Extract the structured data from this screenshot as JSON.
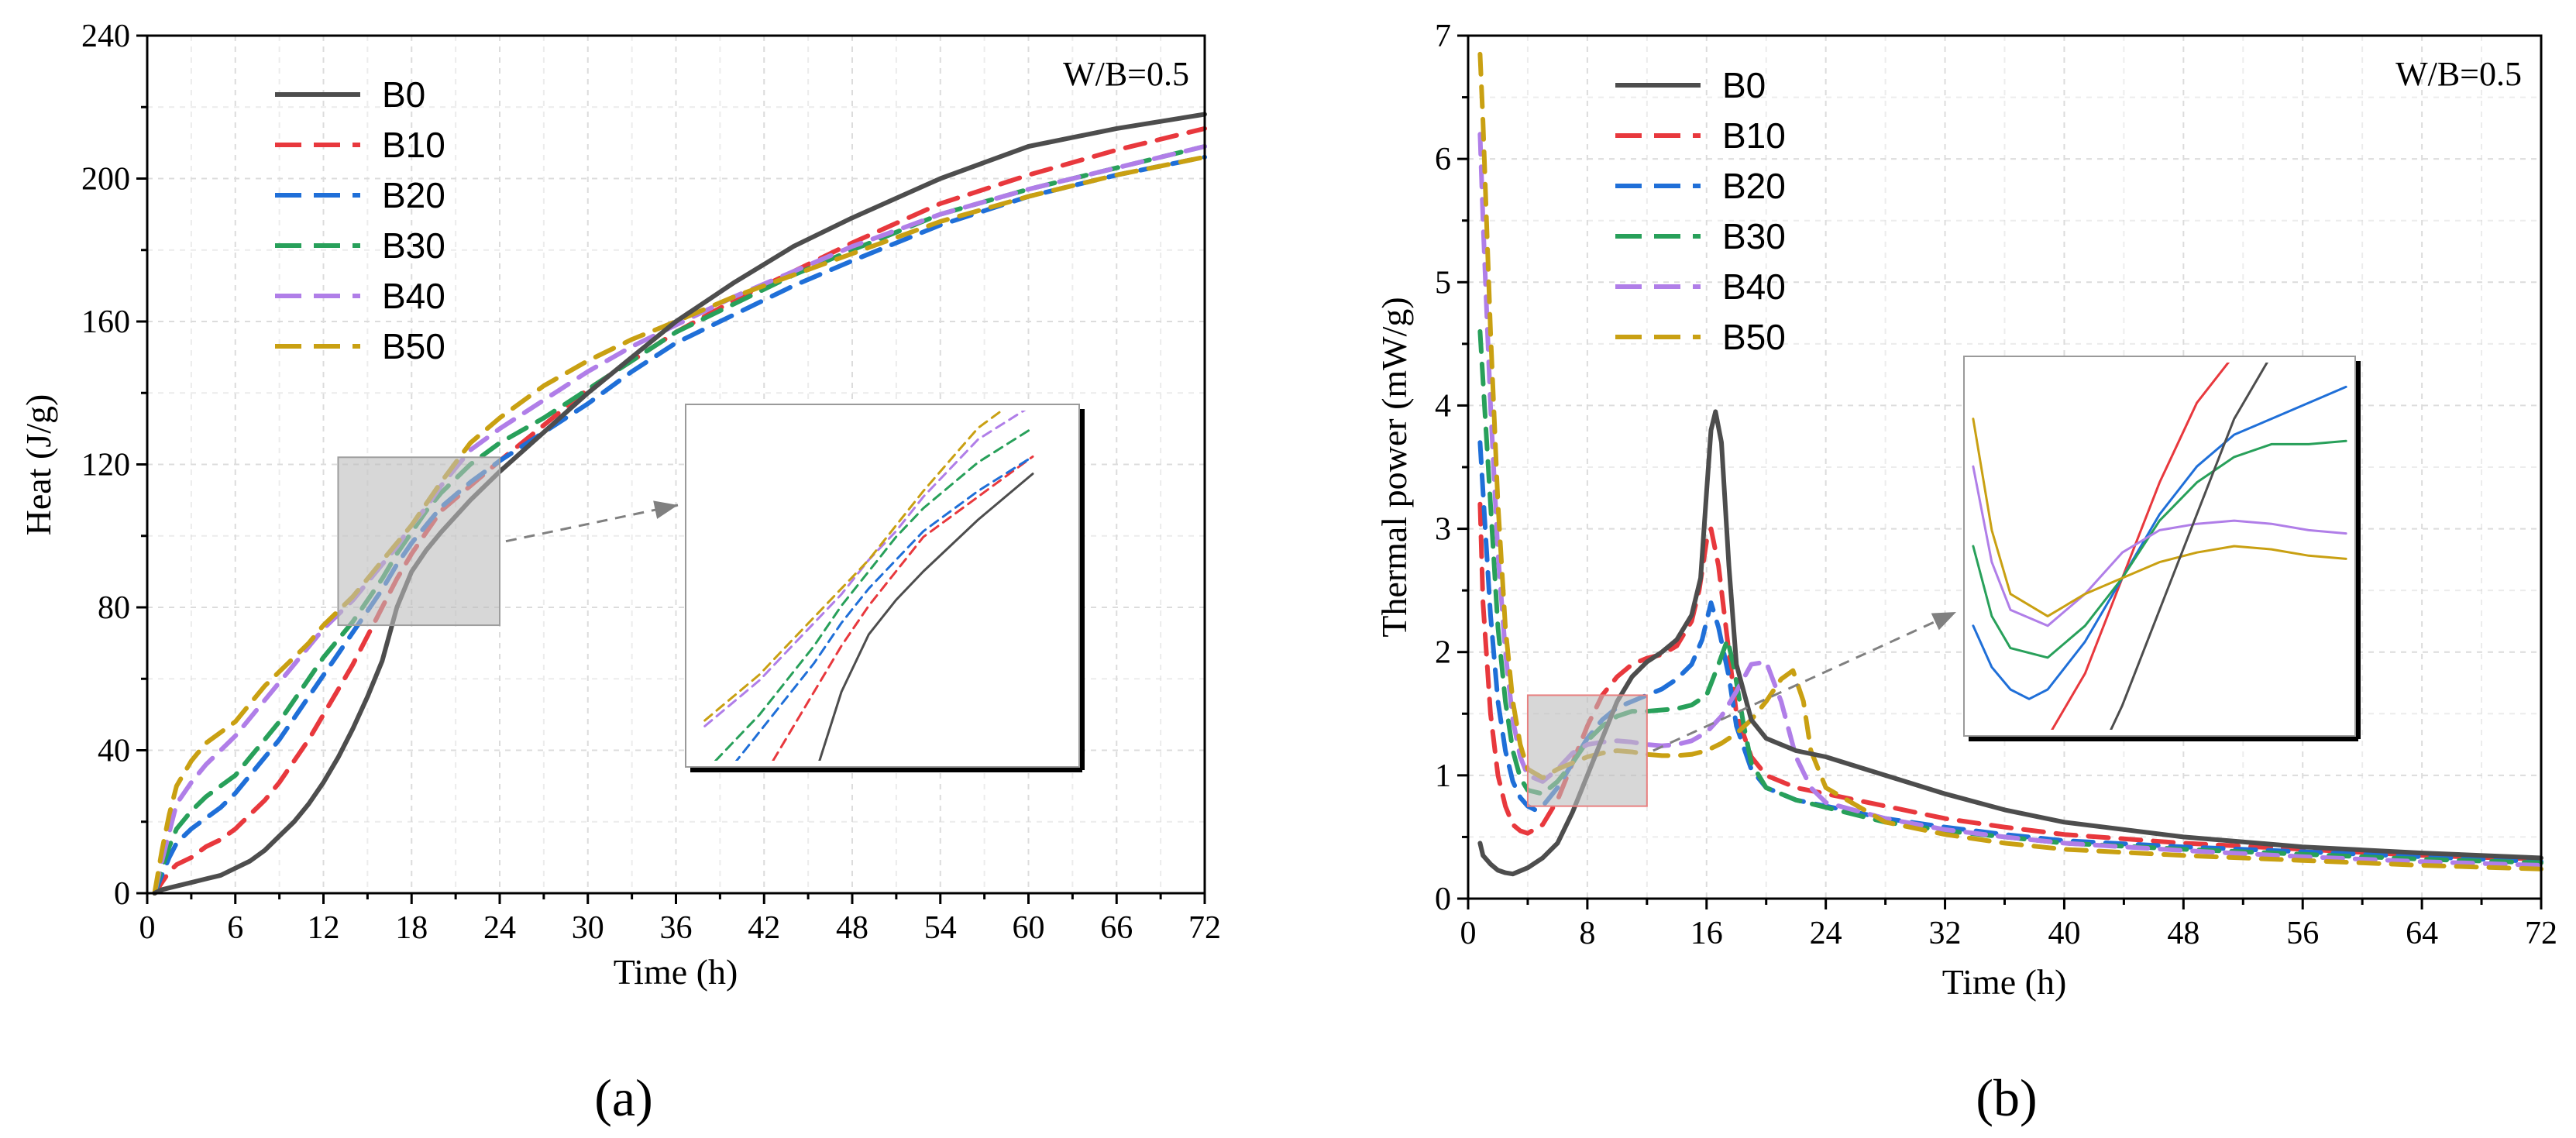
{
  "colors": {
    "B0": "#4d4d4d",
    "B10": "#e8383d",
    "B20": "#1f6fd8",
    "B30": "#28a05a",
    "B40": "#b07ee8",
    "B50": "#c9a012",
    "zoom_a": "#9e9e9e",
    "zoom_b": "#e88080",
    "arrow": "#808080"
  },
  "chart_data": [
    {
      "type": "line",
      "panel_label": "(a)",
      "title": "",
      "annotation": "W/B=0.5",
      "xlabel": "Time (h)",
      "ylabel": "Heat (J/g)",
      "xlim": [
        0,
        72
      ],
      "ylim": [
        0,
        240
      ],
      "xticks": [
        "0",
        "6",
        "12",
        "18",
        "24",
        "30",
        "36",
        "42",
        "48",
        "54",
        "60",
        "66",
        "72"
      ],
      "yticks": [
        "0",
        "40",
        "80",
        "120",
        "160",
        "200",
        "240"
      ],
      "legend": [
        "B0",
        "B10",
        "B20",
        "B30",
        "B40",
        "B50"
      ],
      "legend_position": "top-left",
      "series": [
        {
          "name": "B0",
          "x": [
            0.5,
            1,
            2,
            3,
            4,
            5,
            6,
            7,
            8,
            9,
            10,
            11,
            12,
            13,
            14,
            15,
            16,
            17,
            18,
            19,
            20,
            22,
            24,
            27,
            30,
            33,
            36,
            40,
            44,
            48,
            54,
            60,
            66,
            72
          ],
          "y": [
            0,
            1,
            2,
            3,
            4,
            5,
            7,
            9,
            12,
            16,
            20,
            25,
            31,
            38,
            46,
            55,
            65,
            80,
            90,
            96,
            101,
            110,
            118,
            129,
            140,
            150,
            160,
            171,
            181,
            189,
            200,
            209,
            214,
            218
          ]
        },
        {
          "name": "B10",
          "x": [
            0.5,
            1,
            1.5,
            2,
            3,
            4,
            5,
            6,
            7,
            8,
            9,
            10,
            11,
            12,
            13,
            14,
            15,
            16,
            17,
            18,
            19,
            20,
            22,
            24,
            27,
            30,
            33,
            36,
            40,
            44,
            48,
            54,
            60,
            66,
            72
          ],
          "y": [
            0,
            3,
            6,
            8,
            10,
            13,
            15,
            18,
            22,
            26,
            31,
            37,
            43,
            50,
            57,
            64,
            72,
            80,
            88,
            95,
            101,
            107,
            114,
            121,
            131,
            141,
            149,
            157,
            166,
            174,
            182,
            193,
            201,
            208,
            214
          ]
        },
        {
          "name": "B20",
          "x": [
            0.5,
            1,
            1.5,
            2,
            3,
            4,
            5,
            6,
            7,
            8,
            9,
            10,
            11,
            12,
            13,
            14,
            15,
            16,
            17,
            18,
            19,
            20,
            22,
            24,
            27,
            30,
            33,
            36,
            40,
            44,
            48,
            54,
            60,
            66,
            72
          ],
          "y": [
            0,
            5,
            10,
            14,
            18,
            21,
            24,
            28,
            33,
            38,
            43,
            49,
            55,
            61,
            67,
            73,
            79,
            85,
            92,
            98,
            103,
            108,
            115,
            121,
            129,
            137,
            146,
            154,
            162,
            170,
            177,
            187,
            195,
            201,
            206
          ]
        },
        {
          "name": "B30",
          "x": [
            0.5,
            1,
            1.5,
            2,
            3,
            4,
            5,
            6,
            7,
            8,
            9,
            10,
            11,
            12,
            13,
            14,
            15,
            16,
            17,
            18,
            19,
            20,
            22,
            24,
            27,
            30,
            33,
            36,
            40,
            44,
            48,
            54,
            60,
            66,
            72
          ],
          "y": [
            0,
            7,
            13,
            18,
            23,
            27,
            30,
            33,
            38,
            43,
            48,
            54,
            60,
            66,
            71,
            76,
            82,
            88,
            95,
            101,
            107,
            112,
            120,
            126,
            133,
            141,
            149,
            157,
            165,
            173,
            180,
            190,
            197,
            203,
            209
          ]
        },
        {
          "name": "B40",
          "x": [
            0.5,
            1,
            1.5,
            2,
            3,
            4,
            5,
            6,
            7,
            8,
            9,
            10,
            11,
            12,
            13,
            14,
            15,
            16,
            17,
            18,
            19,
            20,
            22,
            24,
            27,
            30,
            33,
            36,
            40,
            44,
            48,
            54,
            60,
            66,
            72
          ],
          "y": [
            0,
            9,
            17,
            25,
            31,
            36,
            40,
            44,
            49,
            54,
            59,
            64,
            69,
            74,
            78,
            82,
            87,
            92,
            97,
            103,
            108,
            114,
            124,
            130,
            138,
            146,
            153,
            159,
            167,
            174,
            181,
            190,
            197,
            203,
            209
          ]
        },
        {
          "name": "B50",
          "x": [
            0.5,
            1,
            1.5,
            2,
            3,
            4,
            5,
            6,
            7,
            8,
            9,
            10,
            11,
            12,
            13,
            14,
            15,
            16,
            17,
            18,
            19,
            20,
            22,
            24,
            27,
            30,
            33,
            36,
            40,
            44,
            48,
            54,
            60,
            66,
            72
          ],
          "y": [
            0,
            12,
            22,
            30,
            37,
            42,
            45,
            48,
            53,
            58,
            62,
            66,
            70,
            75,
            79,
            83,
            88,
            93,
            98,
            103,
            109,
            115,
            126,
            133,
            142,
            149,
            155,
            160,
            167,
            173,
            179,
            188,
            195,
            201,
            206
          ]
        }
      ],
      "zoom_region": {
        "x": [
          13,
          24
        ],
        "y": [
          75,
          122
        ]
      }
    },
    {
      "type": "line",
      "panel_label": "(b)",
      "title": "",
      "annotation": "W/B=0.5",
      "xlabel": "Time (h)",
      "ylabel": "Thermal power (mW/g)",
      "xlim": [
        0,
        72
      ],
      "ylim": [
        0,
        7
      ],
      "xticks": [
        "0",
        "8",
        "16",
        "24",
        "32",
        "40",
        "48",
        "56",
        "64",
        "72"
      ],
      "yticks": [
        "0",
        "1",
        "2",
        "3",
        "4",
        "5",
        "6",
        "7"
      ],
      "legend": [
        "B0",
        "B10",
        "B20",
        "B30",
        "B40",
        "B50"
      ],
      "legend_position": "top-left",
      "series": [
        {
          "name": "B0",
          "x": [
            0.8,
            1,
            1.5,
            2,
            2.5,
            3,
            4,
            5,
            6,
            7,
            8,
            9,
            10,
            11,
            12,
            13,
            14,
            15,
            15.6,
            16,
            16.3,
            16.6,
            17,
            17.5,
            18,
            19,
            20,
            22,
            24,
            28,
            32,
            36,
            40,
            48,
            56,
            64,
            72
          ],
          "y": [
            0.45,
            0.35,
            0.28,
            0.23,
            0.21,
            0.2,
            0.25,
            0.33,
            0.45,
            0.7,
            1.0,
            1.3,
            1.6,
            1.8,
            1.92,
            2.0,
            2.1,
            2.3,
            2.6,
            3.3,
            3.8,
            3.95,
            3.7,
            2.7,
            1.9,
            1.45,
            1.3,
            1.2,
            1.15,
            1.0,
            0.85,
            0.72,
            0.62,
            0.5,
            0.42,
            0.37,
            0.33
          ]
        },
        {
          "name": "B10",
          "x": [
            0.8,
            1,
            1.5,
            2,
            2.5,
            3,
            3.5,
            4,
            5,
            6,
            7,
            8,
            9,
            10,
            11,
            12,
            13,
            14,
            15,
            15.5,
            16,
            16.3,
            16.8,
            17.5,
            18,
            19,
            20,
            22,
            24,
            28,
            32,
            36,
            40,
            48,
            56,
            64,
            72
          ],
          "y": [
            3.2,
            2.4,
            1.5,
            1.0,
            0.75,
            0.6,
            0.55,
            0.53,
            0.6,
            0.8,
            1.1,
            1.4,
            1.65,
            1.8,
            1.9,
            1.95,
            1.98,
            2.05,
            2.25,
            2.5,
            2.9,
            3.0,
            2.7,
            2.0,
            1.5,
            1.15,
            1.0,
            0.9,
            0.85,
            0.75,
            0.65,
            0.58,
            0.52,
            0.45,
            0.4,
            0.35,
            0.32
          ]
        },
        {
          "name": "B20",
          "x": [
            0.8,
            1,
            1.5,
            2,
            2.5,
            3,
            3.5,
            4,
            4.5,
            5,
            6,
            7,
            8,
            9,
            10,
            11,
            12,
            13,
            14,
            15,
            15.7,
            16.3,
            16.8,
            17.5,
            18,
            19,
            20,
            22,
            24,
            28,
            32,
            36,
            40,
            48,
            56,
            64,
            72
          ],
          "y": [
            3.7,
            3.3,
            2.3,
            1.6,
            1.2,
            0.95,
            0.82,
            0.75,
            0.72,
            0.75,
            0.9,
            1.1,
            1.3,
            1.45,
            1.55,
            1.6,
            1.65,
            1.7,
            1.78,
            1.9,
            2.1,
            2.4,
            2.2,
            1.8,
            1.4,
            1.05,
            0.9,
            0.8,
            0.75,
            0.65,
            0.58,
            0.52,
            0.47,
            0.42,
            0.38,
            0.34,
            0.3
          ]
        },
        {
          "name": "B30",
          "x": [
            0.8,
            1,
            1.5,
            2,
            2.5,
            3,
            3.5,
            4,
            5,
            6,
            7,
            8,
            9,
            10,
            11,
            12,
            13,
            14,
            15,
            16,
            16.8,
            17.4,
            17.8,
            18.5,
            19,
            20,
            22,
            24,
            28,
            32,
            36,
            40,
            48,
            56,
            64,
            72
          ],
          "y": [
            4.6,
            4.2,
            3.2,
            2.2,
            1.6,
            1.2,
            0.98,
            0.88,
            0.85,
            0.95,
            1.1,
            1.28,
            1.4,
            1.48,
            1.52,
            1.52,
            1.53,
            1.54,
            1.57,
            1.65,
            1.9,
            2.1,
            1.9,
            1.4,
            1.1,
            0.9,
            0.8,
            0.74,
            0.62,
            0.55,
            0.5,
            0.45,
            0.4,
            0.36,
            0.32,
            0.29
          ]
        },
        {
          "name": "B40",
          "x": [
            0.8,
            1,
            1.5,
            2,
            2.5,
            3,
            3.5,
            4,
            5,
            6,
            7,
            8,
            9,
            10,
            11,
            12,
            13,
            14,
            15,
            16,
            17,
            18,
            19,
            20,
            21,
            22,
            23,
            24,
            28,
            32,
            36,
            40,
            48,
            56,
            64,
            72
          ],
          "y": [
            6.2,
            5.5,
            4.0,
            2.8,
            2.0,
            1.45,
            1.15,
            1.0,
            0.95,
            1.05,
            1.18,
            1.25,
            1.27,
            1.28,
            1.27,
            1.25,
            1.24,
            1.25,
            1.28,
            1.35,
            1.48,
            1.68,
            1.9,
            1.92,
            1.6,
            1.15,
            0.9,
            0.78,
            0.65,
            0.56,
            0.5,
            0.45,
            0.39,
            0.34,
            0.3,
            0.27
          ]
        },
        {
          "name": "B50",
          "x": [
            0.8,
            1,
            1.5,
            2,
            2.5,
            3,
            3.5,
            4,
            5,
            6,
            7,
            8,
            9,
            10,
            11,
            12,
            13,
            14,
            15,
            16,
            17,
            18,
            19,
            20,
            21,
            21.8,
            22.5,
            23,
            24,
            28,
            32,
            36,
            40,
            48,
            56,
            64,
            72
          ],
          "y": [
            6.85,
            6.3,
            4.6,
            3.2,
            2.2,
            1.6,
            1.25,
            1.05,
            0.98,
            1.05,
            1.1,
            1.15,
            1.18,
            1.2,
            1.19,
            1.17,
            1.16,
            1.16,
            1.17,
            1.2,
            1.26,
            1.34,
            1.45,
            1.6,
            1.78,
            1.85,
            1.6,
            1.2,
            0.9,
            0.62,
            0.52,
            0.45,
            0.4,
            0.35,
            0.31,
            0.27,
            0.24
          ]
        }
      ],
      "zoom_region": {
        "x": [
          4,
          12
        ],
        "y": [
          0.75,
          1.65
        ]
      }
    }
  ]
}
